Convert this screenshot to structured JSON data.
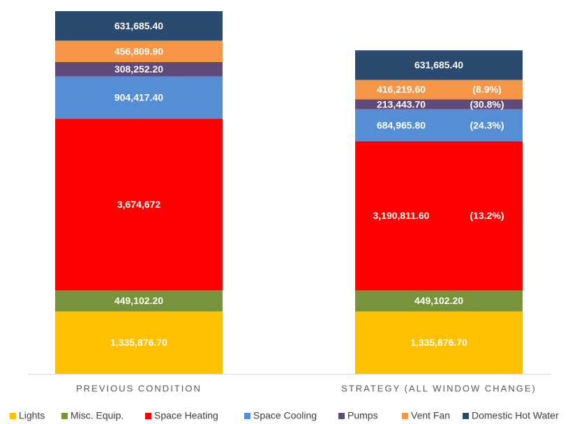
{
  "chart_data": {
    "type": "stacked_bar",
    "categories": [
      "PREVIOUS CONDITION",
      "STRATEGY (ALL WINDOW CHANGE)"
    ],
    "series": [
      {
        "name": "Lights",
        "color": "#ffc000",
        "values": [
          1335876.7,
          1335876.7
        ],
        "value_labels": [
          "1,335,876.70",
          "1,335,876.70"
        ]
      },
      {
        "name": "Misc. Equip.",
        "color": "#77933c",
        "values": [
          449102.2,
          449102.2
        ],
        "value_labels": [
          "449,102.20",
          "449,102.20"
        ]
      },
      {
        "name": "Space Heating",
        "color": "#ff0000",
        "values": [
          3674672,
          3190811.6
        ],
        "value_labels": [
          "3,674,672",
          "3,190,811.60"
        ],
        "change_labels": [
          null,
          "(13.2%)"
        ]
      },
      {
        "name": "Space Cooling",
        "color": "#558ed5",
        "values": [
          904417.4,
          684965.8
        ],
        "value_labels": [
          "904,417.40",
          "684,965.80"
        ],
        "change_labels": [
          null,
          "(24.3%)"
        ]
      },
      {
        "name": "Pumps",
        "color": "#604a7b",
        "values": [
          308252.2,
          213443.7
        ],
        "value_labels": [
          "308,252.20",
          "213,443.70"
        ],
        "change_labels": [
          null,
          "(30.8%)"
        ]
      },
      {
        "name": "Vent Fan",
        "color": "#f79646",
        "values": [
          456809.9,
          416219.6
        ],
        "value_labels": [
          "456,809.90",
          "416,219.60"
        ],
        "change_labels": [
          null,
          "(8.9%)"
        ]
      },
      {
        "name": "Domestic Hot Water",
        "color": "#2b4a70",
        "values": [
          631685.4,
          631685.4
        ],
        "value_labels": [
          "631,685.40",
          "631,685.40"
        ]
      }
    ],
    "legend": "bottom"
  }
}
